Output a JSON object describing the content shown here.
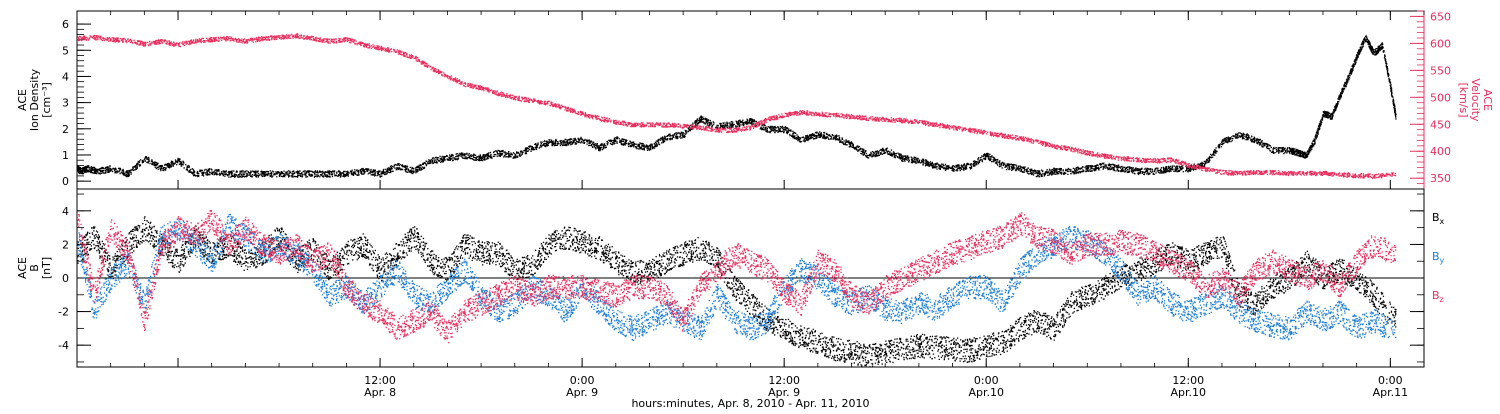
{
  "colors": {
    "black": "#000000",
    "pink": "#e8305f",
    "blue": "#1f7fd6"
  },
  "chart_data": [
    {
      "type": "scatter",
      "panel": "top",
      "ylabel_lines": [
        "ACE",
        "Ion Density",
        "[cm⁻³]"
      ],
      "y2label_lines": [
        "ACE",
        "Velocity",
        "[km/s]"
      ],
      "ylim": [
        -0.3,
        6.5
      ],
      "y_ticks": [
        "0",
        "1",
        "2",
        "3",
        "4",
        "5",
        "6"
      ],
      "y2lim": [
        330,
        660
      ],
      "y2_ticks": [
        "350",
        "400",
        "450",
        "500",
        "550",
        "600",
        "650"
      ],
      "series": [
        {
          "label": "Ion Density",
          "color": "#000000",
          "axis": "left",
          "x": [
            0.0,
            0.2,
            0.6,
            1.2,
            2.0,
            3.0,
            4.0,
            5.0,
            6.0,
            7.0,
            8.0,
            9.0,
            10.0,
            11.0,
            12.0,
            13.0,
            14.0,
            15.0,
            16.0,
            17.0,
            18.0,
            19.0,
            20.0,
            21.0,
            22.0,
            23.0,
            24.0,
            25.0,
            26.0,
            27.0,
            28.0,
            29.0,
            30.0,
            31.0,
            32.0,
            33.0,
            34.0,
            35.0,
            36.0,
            37.0,
            38.0,
            39.0,
            40.0,
            41.0,
            42.0,
            43.0,
            44.0,
            45.0,
            46.0,
            47.0,
            48.0,
            49.0,
            50.0,
            51.0,
            52.0,
            53.0,
            54.0,
            55.0,
            56.0,
            57.0,
            58.0,
            59.0,
            60.0,
            61.0,
            62.0,
            63.0,
            64.0,
            65.0,
            66.0,
            67.0,
            68.0,
            69.0,
            70.0,
            71.0,
            72.0,
            72.5,
            73.0,
            73.5,
            74.0,
            74.5,
            75.0,
            75.5,
            76.0,
            76.5,
            77.0,
            77.5,
            78.0,
            78.3
          ],
          "y": [
            0.5,
            0.4,
            0.5,
            0.4,
            0.5,
            0.3,
            0.9,
            0.5,
            0.8,
            0.3,
            0.4,
            0.3,
            0.3,
            0.3,
            0.3,
            0.3,
            0.3,
            0.3,
            0.3,
            0.4,
            0.3,
            0.6,
            0.4,
            0.8,
            0.9,
            1.0,
            0.9,
            1.1,
            1.0,
            1.3,
            1.5,
            1.5,
            1.6,
            1.3,
            1.6,
            1.4,
            1.3,
            1.7,
            1.8,
            2.4,
            2.1,
            2.2,
            2.3,
            2.0,
            2.0,
            1.6,
            1.8,
            1.7,
            1.4,
            1.0,
            1.2,
            0.9,
            0.8,
            0.6,
            0.5,
            0.6,
            1.0,
            0.6,
            0.5,
            0.3,
            0.4,
            0.4,
            0.5,
            0.6,
            0.5,
            0.4,
            0.4,
            0.5,
            0.5,
            0.7,
            1.5,
            1.8,
            1.6,
            1.2,
            1.2,
            1.1,
            1.0,
            1.6,
            2.6,
            2.5,
            3.3,
            4.0,
            4.8,
            5.5,
            4.9,
            5.2,
            3.6,
            2.5
          ]
        },
        {
          "label": "Velocity",
          "color": "#e8305f",
          "axis": "right",
          "x": [
            0.0,
            1.0,
            2.0,
            3.0,
            4.0,
            5.0,
            6.0,
            7.0,
            8.0,
            9.0,
            10.0,
            11.0,
            12.0,
            13.0,
            14.0,
            15.0,
            16.0,
            17.0,
            18.0,
            19.0,
            20.0,
            21.0,
            22.0,
            23.0,
            24.0,
            25.0,
            26.0,
            27.0,
            28.0,
            29.0,
            30.0,
            31.0,
            32.0,
            33.0,
            34.0,
            35.0,
            36.0,
            37.0,
            38.0,
            39.0,
            40.0,
            41.0,
            42.0,
            43.0,
            44.0,
            45.0,
            46.0,
            47.0,
            48.0,
            49.0,
            50.0,
            51.0,
            52.0,
            53.0,
            54.0,
            55.0,
            56.0,
            57.0,
            58.0,
            59.0,
            60.0,
            61.0,
            62.0,
            63.0,
            64.0,
            65.0,
            66.0,
            67.0,
            68.0,
            69.0,
            70.0,
            71.0,
            72.0,
            73.0,
            74.0,
            75.0,
            76.0,
            77.0,
            78.3
          ],
          "y": [
            610,
            612,
            608,
            606,
            600,
            605,
            598,
            606,
            608,
            610,
            605,
            610,
            612,
            615,
            610,
            605,
            608,
            598,
            592,
            585,
            575,
            555,
            540,
            525,
            518,
            508,
            500,
            495,
            490,
            480,
            470,
            462,
            455,
            450,
            450,
            450,
            448,
            445,
            440,
            440,
            445,
            460,
            468,
            473,
            470,
            468,
            465,
            462,
            460,
            458,
            455,
            450,
            445,
            440,
            435,
            430,
            425,
            418,
            410,
            405,
            398,
            392,
            388,
            385,
            383,
            385,
            375,
            368,
            362,
            360,
            362,
            362,
            360,
            360,
            360,
            358,
            356,
            355,
            358
          ]
        }
      ]
    },
    {
      "type": "scatter",
      "panel": "bottom",
      "ylabel_lines": [
        "ACE",
        "B",
        "[nT]"
      ],
      "ylim": [
        -5.3,
        5.3
      ],
      "y_ticks": [
        "-4",
        "-2",
        "0",
        "2",
        "4"
      ],
      "zero_line": true,
      "series": [
        {
          "label": "B",
          "subscript": "x",
          "color": "#000000",
          "x": [
            0.0,
            1.0,
            2.0,
            3.0,
            4.0,
            5.0,
            6.0,
            7.0,
            8.0,
            9.0,
            10.0,
            11.0,
            12.0,
            13.0,
            14.0,
            15.0,
            16.0,
            17.0,
            18.0,
            19.0,
            20.0,
            21.0,
            22.0,
            23.0,
            24.0,
            25.0,
            26.0,
            27.0,
            28.0,
            29.0,
            30.0,
            31.0,
            32.0,
            33.0,
            34.0,
            35.0,
            36.0,
            37.0,
            38.0,
            39.0,
            40.0,
            41.0,
            42.0,
            43.0,
            44.0,
            45.0,
            46.0,
            47.0,
            48.0,
            49.0,
            50.0,
            51.0,
            52.0,
            53.0,
            54.0,
            55.0,
            56.0,
            57.0,
            58.0,
            59.0,
            60.0,
            61.0,
            62.0,
            63.0,
            64.0,
            65.0,
            66.0,
            67.0,
            68.0,
            69.0,
            70.0,
            71.0,
            72.0,
            73.0,
            74.0,
            75.0,
            76.0,
            77.0,
            78.3
          ],
          "y": [
            1.5,
            2.5,
            0.5,
            2.0,
            3.0,
            2.0,
            1.0,
            2.5,
            1.5,
            2.0,
            1.0,
            1.5,
            2.5,
            1.0,
            1.8,
            0.5,
            1.5,
            2.0,
            0.5,
            1.5,
            2.5,
            1.0,
            0.5,
            2.0,
            1.5,
            1.5,
            0.5,
            0.8,
            2.0,
            2.4,
            2.2,
            1.8,
            1.0,
            0.3,
            0.5,
            1.0,
            1.5,
            1.8,
            1.2,
            -0.5,
            -1.5,
            -2.5,
            -3.0,
            -3.5,
            -3.8,
            -4.2,
            -4.4,
            -4.6,
            -4.4,
            -4.2,
            -4.0,
            -4.1,
            -4.2,
            -4.3,
            -4.0,
            -3.8,
            -3.0,
            -2.5,
            -3.0,
            -1.5,
            -1.0,
            -0.5,
            0.0,
            0.5,
            1.0,
            1.5,
            1.0,
            1.5,
            2.0,
            -1.0,
            -1.5,
            -0.5,
            0.0,
            1.0,
            0.0,
            0.5,
            0.0,
            -1.0,
            -2.5
          ]
        },
        {
          "label": "B",
          "subscript": "y",
          "color": "#1f7fd6",
          "x": [
            0.0,
            1.0,
            2.0,
            3.0,
            4.0,
            5.0,
            6.0,
            7.0,
            8.0,
            9.0,
            10.0,
            11.0,
            12.0,
            13.0,
            14.0,
            15.0,
            16.0,
            17.0,
            18.0,
            19.0,
            20.0,
            21.0,
            22.0,
            23.0,
            24.0,
            25.0,
            26.0,
            27.0,
            28.0,
            29.0,
            30.0,
            31.0,
            32.0,
            33.0,
            34.0,
            35.0,
            36.0,
            37.0,
            38.0,
            39.0,
            40.0,
            41.0,
            42.0,
            43.0,
            44.0,
            45.0,
            46.0,
            47.0,
            48.0,
            49.0,
            50.0,
            51.0,
            52.0,
            53.0,
            54.0,
            55.0,
            56.0,
            57.0,
            58.0,
            59.0,
            60.0,
            61.0,
            62.0,
            63.0,
            64.0,
            65.0,
            66.0,
            67.0,
            68.0,
            69.0,
            70.0,
            71.0,
            72.0,
            73.0,
            74.0,
            75.0,
            76.0,
            77.0,
            78.3
          ],
          "y": [
            2.5,
            -2.0,
            0.0,
            1.0,
            -1.5,
            2.5,
            3.0,
            2.0,
            1.0,
            3.2,
            2.5,
            1.5,
            2.0,
            1.5,
            0.5,
            -1.0,
            -0.5,
            -1.5,
            -0.5,
            0.5,
            -1.0,
            -1.5,
            -0.5,
            0.5,
            -1.0,
            -2.0,
            -1.5,
            -0.5,
            -1.0,
            -2.0,
            -0.5,
            -1.5,
            -2.5,
            -3.0,
            -2.5,
            -2.0,
            -2.5,
            -3.0,
            -1.0,
            -2.5,
            -3.0,
            -2.5,
            -0.5,
            0.5,
            0.0,
            -1.0,
            -1.5,
            -1.0,
            -1.8,
            -2.0,
            -1.5,
            -1.8,
            -1.0,
            -0.5,
            -0.5,
            -1.5,
            0.5,
            1.5,
            2.0,
            2.5,
            2.2,
            1.5,
            0.5,
            -1.0,
            -0.5,
            -1.5,
            -2.0,
            -1.5,
            -1.0,
            -2.0,
            -2.5,
            -2.8,
            -3.0,
            -2.0,
            -2.5,
            -2.0,
            -3.0,
            -2.5,
            -3.2
          ]
        },
        {
          "label": "B",
          "subscript": "z",
          "color": "#e8305f",
          "x": [
            0.0,
            1.0,
            2.0,
            3.0,
            4.0,
            5.0,
            6.0,
            7.0,
            8.0,
            9.0,
            10.0,
            11.0,
            12.0,
            13.0,
            14.0,
            15.0,
            16.0,
            17.0,
            18.0,
            19.0,
            20.0,
            21.0,
            22.0,
            23.0,
            24.0,
            25.0,
            26.0,
            27.0,
            28.0,
            29.0,
            30.0,
            31.0,
            32.0,
            33.0,
            34.0,
            35.0,
            36.0,
            37.0,
            38.0,
            39.0,
            40.0,
            41.0,
            42.0,
            43.0,
            44.0,
            45.0,
            46.0,
            47.0,
            48.0,
            49.0,
            50.0,
            51.0,
            52.0,
            53.0,
            54.0,
            55.0,
            56.0,
            57.0,
            58.0,
            59.0,
            60.0,
            61.0,
            62.0,
            63.0,
            64.0,
            65.0,
            66.0,
            67.0,
            68.0,
            69.0,
            70.0,
            71.0,
            72.0,
            73.0,
            74.0,
            75.0,
            76.0,
            77.0,
            78.3
          ],
          "y": [
            3.5,
            -1.0,
            3.0,
            1.5,
            -2.5,
            2.0,
            3.0,
            2.5,
            3.5,
            2.0,
            3.0,
            2.0,
            1.5,
            2.0,
            1.0,
            1.5,
            -0.5,
            -1.5,
            -2.0,
            -3.0,
            -2.5,
            -2.0,
            -3.2,
            -2.0,
            -1.5,
            -1.0,
            -0.5,
            -1.0,
            -0.5,
            -0.5,
            -0.5,
            -0.8,
            -1.0,
            -0.5,
            -0.5,
            -1.0,
            -2.5,
            -0.5,
            0.5,
            1.5,
            1.0,
            0.5,
            -0.8,
            -1.5,
            1.0,
            0.5,
            -1.0,
            -1.5,
            -0.5,
            0.0,
            0.5,
            1.0,
            1.5,
            1.8,
            2.2,
            2.5,
            3.3,
            2.5,
            2.2,
            1.5,
            2.0,
            2.0,
            2.2,
            2.0,
            1.5,
            1.0,
            0.5,
            -0.5,
            0.0,
            -1.0,
            0.5,
            1.0,
            0.5,
            0.0,
            0.5,
            -0.5,
            1.0,
            2.0,
            1.5
          ]
        }
      ]
    }
  ],
  "x_axis": {
    "lim": [
      0,
      80
    ],
    "tick_values": [
      6,
      18,
      30,
      42,
      54,
      66,
      78
    ],
    "labels": [
      {
        "x": 18,
        "line1": "12:00",
        "line2": "Apr. 8"
      },
      {
        "x": 30,
        "line1": "0:00",
        "line2": "Apr. 9"
      },
      {
        "x": 42,
        "line1": "12:00",
        "line2": "Apr. 9"
      },
      {
        "x": 54,
        "line1": "0:00",
        "line2": "Apr.10"
      },
      {
        "x": 66,
        "line1": "12:00",
        "line2": "Apr.10"
      },
      {
        "x": 78,
        "line1": "0:00",
        "line2": "Apr.11"
      }
    ],
    "xlabel": "hours:minutes, Apr.  8, 2010 - Apr. 11, 2010"
  }
}
